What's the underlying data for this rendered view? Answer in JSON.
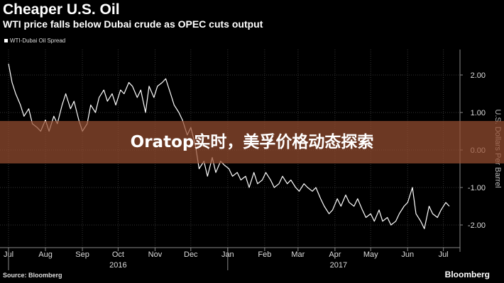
{
  "chart_data": {
    "type": "line",
    "title": "Cheaper U.S. Oil",
    "subtitle": "WTI price falls below Dubai crude as OPEC cuts output",
    "ylabel": "U.S. Dollars Per Barrel",
    "ylim": [
      -2.5,
      2.6
    ],
    "grid": true,
    "legend_position": "top-left",
    "x_tick_labels": [
      "Jul",
      "Aug",
      "Sep",
      "Oct",
      "Nov",
      "Dec",
      "Jan",
      "Feb",
      "Mar",
      "Apr",
      "May",
      "Jun",
      "Jul"
    ],
    "x_year_labels": [
      "2016",
      "2017"
    ],
    "y_ticks": [
      2.0,
      1.0,
      0.0,
      -1.0,
      -2.0
    ],
    "y_tick_labels": [
      "2.00",
      "1.00",
      "0.00",
      "-1.00",
      "-2.00"
    ],
    "series": [
      {
        "name": "WTI-Dubai Oil Spread",
        "color": "#ffffff",
        "x": [
          "2016-07-01",
          "2016-07-04",
          "2016-07-07",
          "2016-07-11",
          "2016-07-14",
          "2016-07-18",
          "2016-07-21",
          "2016-07-25",
          "2016-07-28",
          "2016-08-01",
          "2016-08-04",
          "2016-08-08",
          "2016-08-11",
          "2016-08-15",
          "2016-08-18",
          "2016-08-22",
          "2016-08-25",
          "2016-08-29",
          "2016-09-01",
          "2016-09-05",
          "2016-09-08",
          "2016-09-12",
          "2016-09-15",
          "2016-09-19",
          "2016-09-22",
          "2016-09-26",
          "2016-09-29",
          "2016-10-03",
          "2016-10-06",
          "2016-10-10",
          "2016-10-13",
          "2016-10-17",
          "2016-10-20",
          "2016-10-24",
          "2016-10-27",
          "2016-10-31",
          "2016-11-03",
          "2016-11-07",
          "2016-11-10",
          "2016-11-14",
          "2016-11-17",
          "2016-11-21",
          "2016-11-24",
          "2016-11-28",
          "2016-12-01",
          "2016-12-05",
          "2016-12-08",
          "2016-12-12",
          "2016-12-15",
          "2016-12-19",
          "2016-12-22",
          "2016-12-26",
          "2016-12-29",
          "2017-01-02",
          "2017-01-05",
          "2017-01-09",
          "2017-01-12",
          "2017-01-16",
          "2017-01-19",
          "2017-01-23",
          "2017-01-26",
          "2017-01-30",
          "2017-02-02",
          "2017-02-06",
          "2017-02-09",
          "2017-02-13",
          "2017-02-16",
          "2017-02-20",
          "2017-02-23",
          "2017-02-27",
          "2017-03-02",
          "2017-03-06",
          "2017-03-09",
          "2017-03-13",
          "2017-03-16",
          "2017-03-20",
          "2017-03-23",
          "2017-03-27",
          "2017-03-30",
          "2017-04-03",
          "2017-04-06",
          "2017-04-10",
          "2017-04-13",
          "2017-04-17",
          "2017-04-20",
          "2017-04-24",
          "2017-04-27",
          "2017-05-01",
          "2017-05-04",
          "2017-05-08",
          "2017-05-11",
          "2017-05-15",
          "2017-05-18",
          "2017-05-22",
          "2017-05-25",
          "2017-05-29",
          "2017-06-01",
          "2017-06-05",
          "2017-06-08",
          "2017-06-12",
          "2017-06-15",
          "2017-06-19",
          "2017-06-22",
          "2017-06-26",
          "2017-06-29",
          "2017-07-03",
          "2017-07-06"
        ],
        "values": [
          2.3,
          1.8,
          1.5,
          1.2,
          0.9,
          1.1,
          0.7,
          0.6,
          0.5,
          0.8,
          0.5,
          0.9,
          0.7,
          1.2,
          1.5,
          1.1,
          1.3,
          0.8,
          0.5,
          0.7,
          1.2,
          1.0,
          1.4,
          1.6,
          1.3,
          1.5,
          1.2,
          1.6,
          1.5,
          1.8,
          1.7,
          1.4,
          1.6,
          1.0,
          1.7,
          1.4,
          1.7,
          1.8,
          1.9,
          1.5,
          1.2,
          1.0,
          0.8,
          0.4,
          0.6,
          0.1,
          -0.5,
          -0.3,
          -0.7,
          -0.2,
          -0.6,
          -0.3,
          -0.4,
          -0.5,
          -0.7,
          -0.6,
          -0.8,
          -0.7,
          -1.0,
          -0.6,
          -0.9,
          -0.8,
          -0.6,
          -0.8,
          -1.0,
          -0.9,
          -0.7,
          -0.9,
          -0.8,
          -1.0,
          -1.1,
          -0.9,
          -1.0,
          -1.1,
          -1.0,
          -1.3,
          -1.5,
          -1.7,
          -1.6,
          -1.3,
          -1.5,
          -1.2,
          -1.4,
          -1.5,
          -1.3,
          -1.6,
          -1.8,
          -1.7,
          -1.9,
          -1.6,
          -1.9,
          -1.8,
          -2.0,
          -1.9,
          -1.7,
          -1.5,
          -1.4,
          -1.0,
          -1.7,
          -1.9,
          -2.1,
          -1.5,
          -1.7,
          -1.8,
          -1.6,
          -1.4,
          -1.5
        ]
      }
    ]
  },
  "overlay": {
    "banner_text": "Oratop实时，美孚价格动态探索",
    "source_text": "Source: Bloomberg",
    "brand_text": "Bloomberg"
  }
}
